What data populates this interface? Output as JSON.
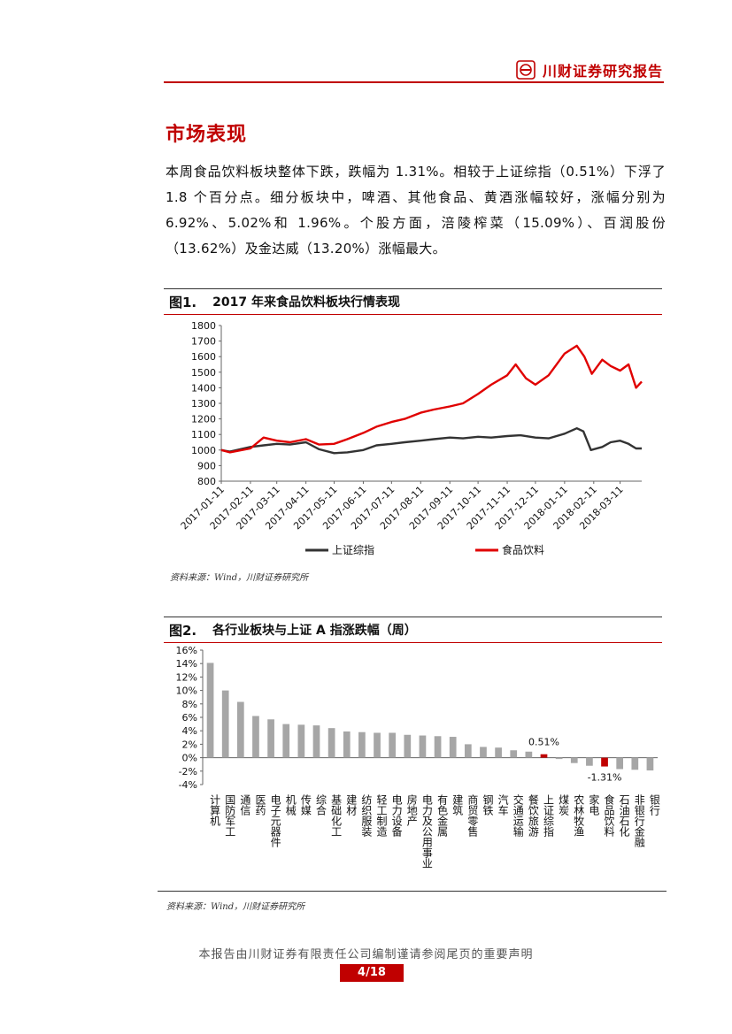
{
  "header": {
    "brand": "川财证券研究报告",
    "brand_icon": "lantern-logo-icon",
    "accent": "#c00000"
  },
  "section": {
    "title": "市场表现",
    "body": "本周食品饮料板块整体下跌，跌幅为 1.31%。相较于上证综指（0.51%）下浮了 1.8 个百分点。细分板块中，啤酒、其他食品、黄酒涨幅较好，涨幅分别为 6.92%、5.02%和 1.96%。个股方面，涪陵榨菜（15.09%）、百润股份（13.62%）及金达威（13.20%）涨幅最大。"
  },
  "figure1": {
    "label": "图1.",
    "title": "2017 年来食品饮料板块行情表现",
    "source": "资料来源：Wind，川财证券研究所"
  },
  "figure2": {
    "label": "图2.",
    "title": "各行业板块与上证 A 指涨跌幅（周）",
    "source": "资料来源：Wind，川财证券研究所"
  },
  "footer": {
    "note": "本报告由川财证券有限责任公司编制谨请参阅尾页的重要声明",
    "page": "4/18"
  },
  "chart_data": [
    {
      "type": "line",
      "title": "2017 年来食品饮料板块行情表现",
      "x_ticks": [
        "2017-01-11",
        "2017-02-11",
        "2017-03-11",
        "2017-04-11",
        "2017-05-11",
        "2017-06-11",
        "2017-07-11",
        "2017-08-11",
        "2017-09-11",
        "2017-10-11",
        "2017-11-11",
        "2017-12-11",
        "2018-01-11",
        "2018-02-11",
        "2018-03-11"
      ],
      "y_ticks": [
        800,
        900,
        1000,
        1100,
        1200,
        1300,
        1400,
        1500,
        1600,
        1700,
        1800
      ],
      "ylim": [
        800,
        1800
      ],
      "grid": false,
      "legend_position": "bottom",
      "series": [
        {
          "name": "上证综指",
          "color": "#333333",
          "x": [
            "2017-01-11",
            "2017-01-20",
            "2017-02-11",
            "2017-02-25",
            "2017-03-11",
            "2017-03-25",
            "2017-04-11",
            "2017-04-25",
            "2017-05-11",
            "2017-05-25",
            "2017-06-11",
            "2017-06-25",
            "2017-07-11",
            "2017-07-25",
            "2017-08-11",
            "2017-08-25",
            "2017-09-11",
            "2017-09-25",
            "2017-10-11",
            "2017-10-25",
            "2017-11-11",
            "2017-11-25",
            "2017-12-11",
            "2017-12-25",
            "2018-01-11",
            "2018-01-24",
            "2018-01-31",
            "2018-02-08",
            "2018-02-20",
            "2018-03-01",
            "2018-03-11",
            "2018-03-20",
            "2018-03-28",
            "2018-04-03"
          ],
          "values": [
            1000,
            990,
            1020,
            1030,
            1040,
            1035,
            1050,
            1005,
            980,
            985,
            1000,
            1030,
            1040,
            1050,
            1060,
            1070,
            1080,
            1075,
            1085,
            1080,
            1090,
            1095,
            1080,
            1075,
            1105,
            1140,
            1120,
            1000,
            1020,
            1050,
            1060,
            1040,
            1010,
            1010
          ]
        },
        {
          "name": "食品饮料",
          "color": "#e00000",
          "x": [
            "2017-01-11",
            "2017-01-20",
            "2017-02-11",
            "2017-02-25",
            "2017-03-11",
            "2017-03-25",
            "2017-04-11",
            "2017-04-25",
            "2017-05-11",
            "2017-05-25",
            "2017-06-11",
            "2017-06-25",
            "2017-07-11",
            "2017-07-25",
            "2017-08-11",
            "2017-08-25",
            "2017-09-11",
            "2017-09-25",
            "2017-10-11",
            "2017-10-25",
            "2017-11-11",
            "2017-11-20",
            "2017-12-01",
            "2017-12-11",
            "2017-12-25",
            "2018-01-11",
            "2018-01-24",
            "2018-02-01",
            "2018-02-09",
            "2018-02-20",
            "2018-03-01",
            "2018-03-11",
            "2018-03-20",
            "2018-03-28",
            "2018-04-03"
          ],
          "values": [
            1000,
            985,
            1010,
            1080,
            1060,
            1050,
            1070,
            1035,
            1040,
            1070,
            1110,
            1150,
            1180,
            1200,
            1240,
            1260,
            1280,
            1300,
            1360,
            1420,
            1480,
            1550,
            1460,
            1420,
            1480,
            1620,
            1670,
            1600,
            1490,
            1580,
            1540,
            1510,
            1550,
            1400,
            1440
          ]
        }
      ]
    },
    {
      "type": "bar",
      "title": "各行业板块与上证 A 指涨跌幅（周）",
      "categories": [
        "计算机",
        "国防军工",
        "通信",
        "医药",
        "电子元器件",
        "机械",
        "传媒",
        "综合",
        "基础化工",
        "建材",
        "纺织服装",
        "轻工制造",
        "电力设备",
        "房地产",
        "电力及公用事业",
        "有色金属",
        "建筑",
        "商贸零售",
        "钢铁",
        "汽车",
        "交通运输",
        "餐饮旅游",
        "上证综指",
        "煤炭",
        "农林牧渔",
        "家电",
        "食品饮料",
        "石油石化",
        "非银行金融",
        "银行"
      ],
      "values": [
        14.1,
        10.0,
        8.3,
        6.2,
        5.7,
        5.0,
        4.9,
        4.8,
        4.4,
        3.9,
        3.8,
        3.7,
        3.7,
        3.4,
        3.3,
        3.2,
        3.1,
        2.0,
        1.6,
        1.5,
        1.1,
        0.9,
        0.51,
        -0.2,
        -0.8,
        -1.2,
        -1.31,
        -1.7,
        -1.8,
        -1.9
      ],
      "highlight": [
        "上证综指",
        "食品饮料"
      ],
      "bar_color": "#a6a6a6",
      "highlight_color": "#c00000",
      "data_labels": {
        "上证综指": "0.51%",
        "食品饮料": "-1.31%"
      },
      "y_ticks": [
        "16%",
        "14%",
        "12%",
        "10%",
        "8%",
        "6%",
        "4%",
        "2%",
        "0%",
        "-2%",
        "-4%"
      ],
      "ylim": [
        -4,
        16
      ]
    }
  ]
}
